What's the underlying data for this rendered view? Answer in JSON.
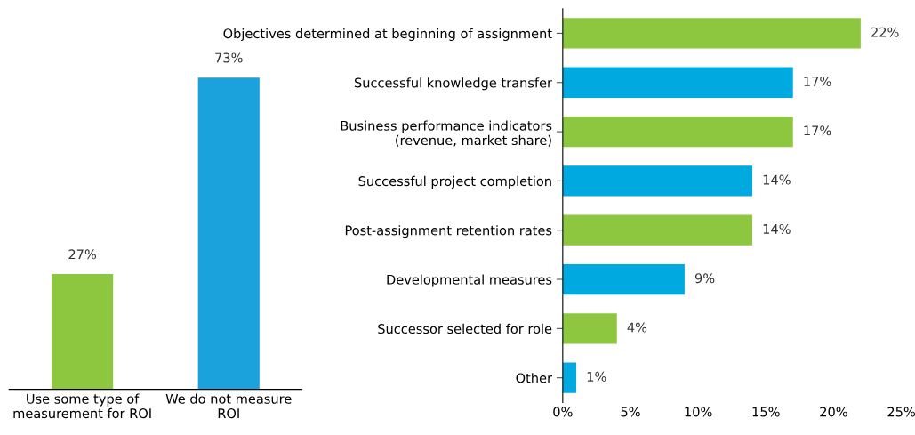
{
  "chart_data": [
    {
      "type": "bar",
      "categories": [
        "Use some type of\nmeasurement for ROI",
        "We do not measure\nROI"
      ],
      "values": [
        27,
        73
      ],
      "colors": [
        "#8dc63f",
        "#1ba1db"
      ],
      "value_labels": [
        "27%",
        "73%"
      ],
      "tick_labels": "x",
      "grid": false,
      "legend": false
    },
    {
      "type": "bar",
      "orientation": "horizontal",
      "categories": [
        "Objectives determined at beginning of assignment",
        "Successful knowledge transfer",
        "Business performance indicators\n(revenue, market share)",
        "Successful project completion",
        "Post-assignment retention rates",
        "Developmental measures",
        "Successor selected for role",
        "Other"
      ],
      "values": [
        22,
        17,
        17,
        14,
        14,
        9,
        4,
        1
      ],
      "colors": [
        "#8dc63f",
        "#00a9e0",
        "#8dc63f",
        "#00a9e0",
        "#8dc63f",
        "#00a9e0",
        "#8dc63f",
        "#00a9e0"
      ],
      "value_labels": [
        "22%",
        "17%",
        "17%",
        "14%",
        "14%",
        "9%",
        "4%",
        "1%"
      ],
      "xlim": [
        0,
        25
      ],
      "xticks": [
        {
          "value": 0,
          "label": "0%"
        },
        {
          "value": 5,
          "label": "5%"
        },
        {
          "value": 10,
          "label": "10%"
        },
        {
          "value": 15,
          "label": "15%"
        },
        {
          "value": 20,
          "label": "20%"
        },
        {
          "value": 25,
          "label": "25%"
        }
      ],
      "grid": false,
      "legend": false
    }
  ]
}
